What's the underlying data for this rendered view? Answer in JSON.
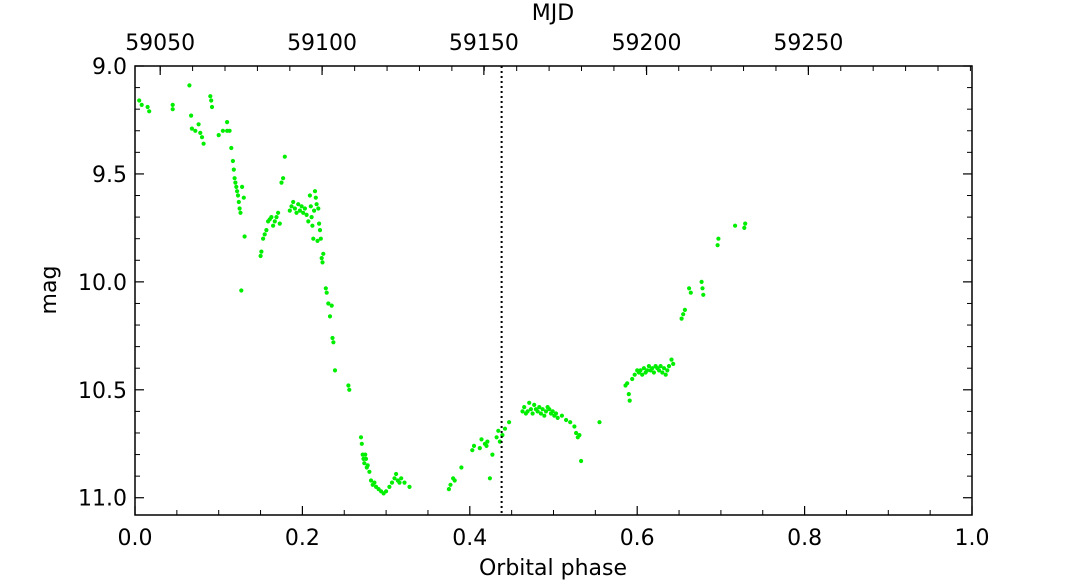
{
  "chart_data": {
    "type": "scatter",
    "xlabel": "Orbital phase",
    "ylabel": "mag",
    "top_xlabel": "MJD",
    "xlim": [
      0.0,
      1.0
    ],
    "ylim": [
      11.08,
      9.0
    ],
    "y_inverted": true,
    "x_ticks": [
      0.0,
      0.2,
      0.4,
      0.6,
      0.8,
      1.0
    ],
    "x_tick_labels": [
      "0.0",
      "0.2",
      "0.4",
      "0.6",
      "0.8",
      "1.0"
    ],
    "y_ticks": [
      9.0,
      9.5,
      10.0,
      10.5,
      11.0
    ],
    "y_tick_labels": [
      "9.0",
      "9.5",
      "10.0",
      "10.5",
      "11.0"
    ],
    "top_ticks_phase": [
      0.0301,
      0.2235,
      0.4168,
      0.6112,
      0.8045
    ],
    "top_tick_labels": [
      "59050",
      "59100",
      "59150",
      "59200",
      "59250"
    ],
    "vline_phase": 0.438,
    "grid": false,
    "point_color": "#00ee00",
    "series": [
      {
        "points": [
          [
            0.005,
            9.16
          ],
          [
            0.008,
            9.18
          ],
          [
            0.015,
            9.19
          ],
          [
            0.017,
            9.21
          ],
          [
            0.045,
            9.18
          ],
          [
            0.045,
            9.2
          ],
          [
            0.065,
            9.09
          ],
          [
            0.067,
            9.23
          ],
          [
            0.068,
            9.29
          ],
          [
            0.072,
            9.3
          ],
          [
            0.076,
            9.27
          ],
          [
            0.078,
            9.31
          ],
          [
            0.08,
            9.33
          ],
          [
            0.082,
            9.36
          ],
          [
            0.09,
            9.14
          ],
          [
            0.091,
            9.16
          ],
          [
            0.092,
            9.19
          ],
          [
            0.1,
            9.32
          ],
          [
            0.105,
            9.3
          ],
          [
            0.11,
            9.26
          ],
          [
            0.11,
            9.3
          ],
          [
            0.113,
            9.3
          ],
          [
            0.115,
            9.38
          ],
          [
            0.117,
            9.44
          ],
          [
            0.118,
            9.48
          ],
          [
            0.119,
            9.52
          ],
          [
            0.12,
            9.54
          ],
          [
            0.121,
            9.56
          ],
          [
            0.122,
            9.58
          ],
          [
            0.123,
            9.6
          ],
          [
            0.124,
            9.63
          ],
          [
            0.125,
            9.66
          ],
          [
            0.126,
            9.68
          ],
          [
            0.127,
            10.04
          ],
          [
            0.128,
            9.56
          ],
          [
            0.13,
            9.61
          ],
          [
            0.131,
            9.79
          ],
          [
            0.15,
            9.88
          ],
          [
            0.151,
            9.86
          ],
          [
            0.153,
            9.8
          ],
          [
            0.155,
            9.78
          ],
          [
            0.157,
            9.76
          ],
          [
            0.159,
            9.72
          ],
          [
            0.161,
            9.71
          ],
          [
            0.163,
            9.7
          ],
          [
            0.165,
            9.74
          ],
          [
            0.167,
            9.72
          ],
          [
            0.169,
            9.7
          ],
          [
            0.171,
            9.68
          ],
          [
            0.173,
            9.73
          ],
          [
            0.175,
            9.54
          ],
          [
            0.177,
            9.52
          ],
          [
            0.179,
            9.42
          ],
          [
            0.185,
            9.67
          ],
          [
            0.187,
            9.65
          ],
          [
            0.189,
            9.63
          ],
          [
            0.191,
            9.66
          ],
          [
            0.193,
            9.68
          ],
          [
            0.195,
            9.64
          ],
          [
            0.197,
            9.67
          ],
          [
            0.199,
            9.65
          ],
          [
            0.201,
            9.68
          ],
          [
            0.203,
            9.66
          ],
          [
            0.205,
            9.69
          ],
          [
            0.207,
            9.72
          ],
          [
            0.209,
            9.6
          ],
          [
            0.21,
            9.65
          ],
          [
            0.211,
            9.7
          ],
          [
            0.212,
            9.74
          ],
          [
            0.213,
            9.8
          ],
          [
            0.214,
            9.67
          ],
          [
            0.215,
            9.58
          ],
          [
            0.216,
            9.61
          ],
          [
            0.217,
            9.64
          ],
          [
            0.218,
            9.81
          ],
          [
            0.219,
            9.66
          ],
          [
            0.22,
            9.73
          ],
          [
            0.221,
            9.76
          ],
          [
            0.222,
            9.8
          ],
          [
            0.223,
            9.89
          ],
          [
            0.224,
            9.91
          ],
          [
            0.225,
            9.87
          ],
          [
            0.228,
            10.03
          ],
          [
            0.229,
            10.05
          ],
          [
            0.231,
            10.1
          ],
          [
            0.233,
            10.16
          ],
          [
            0.235,
            10.11
          ],
          [
            0.236,
            10.26
          ],
          [
            0.237,
            10.28
          ],
          [
            0.239,
            10.41
          ],
          [
            0.255,
            10.48
          ],
          [
            0.256,
            10.5
          ],
          [
            0.27,
            10.72
          ],
          [
            0.271,
            10.75
          ],
          [
            0.272,
            10.8
          ],
          [
            0.273,
            10.82
          ],
          [
            0.274,
            10.84
          ],
          [
            0.275,
            10.8
          ],
          [
            0.276,
            10.82
          ],
          [
            0.277,
            10.86
          ],
          [
            0.278,
            10.85
          ],
          [
            0.28,
            10.88
          ],
          [
            0.282,
            10.92
          ],
          [
            0.284,
            10.94
          ],
          [
            0.286,
            10.93
          ],
          [
            0.288,
            10.95
          ],
          [
            0.291,
            10.96
          ],
          [
            0.294,
            10.97
          ],
          [
            0.297,
            10.98
          ],
          [
            0.3,
            10.97
          ],
          [
            0.304,
            10.95
          ],
          [
            0.307,
            10.93
          ],
          [
            0.31,
            10.91
          ],
          [
            0.312,
            10.89
          ],
          [
            0.314,
            10.92
          ],
          [
            0.316,
            10.93
          ],
          [
            0.318,
            10.91
          ],
          [
            0.322,
            10.93
          ],
          [
            0.328,
            10.95
          ],
          [
            0.375,
            10.96
          ],
          [
            0.377,
            10.94
          ],
          [
            0.38,
            10.91
          ],
          [
            0.382,
            10.92
          ],
          [
            0.39,
            10.86
          ],
          [
            0.403,
            10.78
          ],
          [
            0.405,
            10.76
          ],
          [
            0.412,
            10.77
          ],
          [
            0.414,
            10.73
          ],
          [
            0.418,
            10.75
          ],
          [
            0.42,
            10.76
          ],
          [
            0.421,
            10.74
          ],
          [
            0.424,
            10.91
          ],
          [
            0.427,
            10.8
          ],
          [
            0.432,
            10.72
          ],
          [
            0.434,
            10.69
          ],
          [
            0.436,
            10.74
          ],
          [
            0.439,
            10.71
          ],
          [
            0.442,
            10.68
          ],
          [
            0.447,
            10.65
          ],
          [
            0.463,
            10.6
          ],
          [
            0.465,
            10.58
          ],
          [
            0.467,
            10.61
          ],
          [
            0.469,
            10.6
          ],
          [
            0.471,
            10.56
          ],
          [
            0.473,
            10.59
          ],
          [
            0.475,
            10.61
          ],
          [
            0.477,
            10.57
          ],
          [
            0.479,
            10.59
          ],
          [
            0.481,
            10.6
          ],
          [
            0.483,
            10.58
          ],
          [
            0.485,
            10.61
          ],
          [
            0.487,
            10.59
          ],
          [
            0.489,
            10.62
          ],
          [
            0.491,
            10.6
          ],
          [
            0.493,
            10.58
          ],
          [
            0.495,
            10.59
          ],
          [
            0.497,
            10.61
          ],
          [
            0.499,
            10.6
          ],
          [
            0.501,
            10.62
          ],
          [
            0.503,
            10.61
          ],
          [
            0.505,
            10.63
          ],
          [
            0.51,
            10.62
          ],
          [
            0.515,
            10.64
          ],
          [
            0.52,
            10.65
          ],
          [
            0.525,
            10.67
          ],
          [
            0.527,
            10.7
          ],
          [
            0.529,
            10.72
          ],
          [
            0.531,
            10.71
          ],
          [
            0.533,
            10.83
          ],
          [
            0.555,
            10.65
          ],
          [
            0.586,
            10.48
          ],
          [
            0.588,
            10.47
          ],
          [
            0.59,
            10.52
          ],
          [
            0.591,
            10.55
          ],
          [
            0.594,
            10.45
          ],
          [
            0.597,
            10.43
          ],
          [
            0.6,
            10.41
          ],
          [
            0.602,
            10.42
          ],
          [
            0.604,
            10.41
          ],
          [
            0.606,
            10.43
          ],
          [
            0.608,
            10.4
          ],
          [
            0.61,
            10.42
          ],
          [
            0.612,
            10.41
          ],
          [
            0.614,
            10.39
          ],
          [
            0.616,
            10.41
          ],
          [
            0.618,
            10.4
          ],
          [
            0.62,
            10.42
          ],
          [
            0.622,
            10.39
          ],
          [
            0.624,
            10.4
          ],
          [
            0.626,
            10.41
          ],
          [
            0.628,
            10.39
          ],
          [
            0.63,
            10.42
          ],
          [
            0.632,
            10.4
          ],
          [
            0.634,
            10.43
          ],
          [
            0.636,
            10.41
          ],
          [
            0.638,
            10.39
          ],
          [
            0.641,
            10.36
          ],
          [
            0.643,
            10.38
          ],
          [
            0.653,
            10.17
          ],
          [
            0.655,
            10.15
          ],
          [
            0.657,
            10.13
          ],
          [
            0.662,
            10.03
          ],
          [
            0.664,
            10.05
          ],
          [
            0.677,
            10.0
          ],
          [
            0.678,
            10.03
          ],
          [
            0.679,
            10.06
          ],
          [
            0.696,
            9.83
          ],
          [
            0.697,
            9.8
          ],
          [
            0.717,
            9.74
          ],
          [
            0.728,
            9.75
          ],
          [
            0.729,
            9.73
          ]
        ]
      }
    ]
  }
}
